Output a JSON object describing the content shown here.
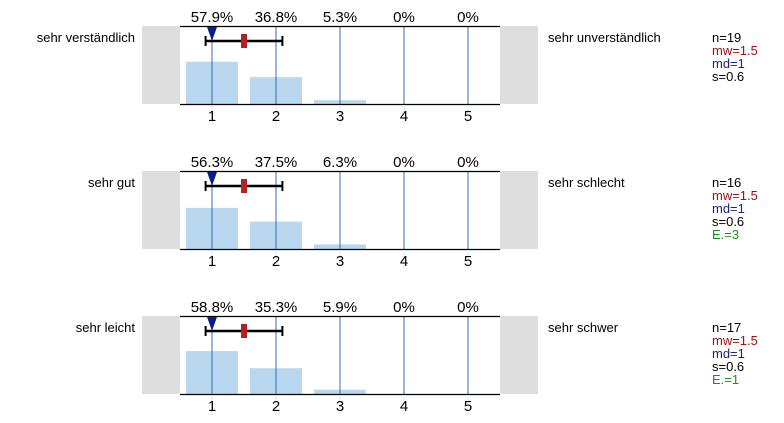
{
  "colors": {
    "bar": "#b9d7ee",
    "axis_line": "#2f6db5",
    "side_box": "#dedede",
    "mean_marker": "#b22222",
    "median_marker": "#0b1f8a",
    "mw_text": "#a01010",
    "md_text": "#1a237e",
    "s_text": "#000000",
    "e_text": "#1a8f1a",
    "n_text": "#000000"
  },
  "chart_data": [
    {
      "type": "bar",
      "left_label": "sehr verständlich",
      "right_label": "sehr unverständlich",
      "categories": [
        "1",
        "2",
        "3",
        "4",
        "5"
      ],
      "percent_labels": [
        "57.9%",
        "36.8%",
        "5.3%",
        "0%",
        "0%"
      ],
      "values": [
        57.9,
        36.8,
        5.3,
        0,
        0
      ],
      "mean": 1.5,
      "median": 1,
      "sd": 0.6,
      "stats": {
        "n": "n=19",
        "mw": "mw=1.5",
        "md": "md=1",
        "s": "s=0.6"
      }
    },
    {
      "type": "bar",
      "left_label": "sehr gut",
      "right_label": "sehr schlecht",
      "categories": [
        "1",
        "2",
        "3",
        "4",
        "5"
      ],
      "percent_labels": [
        "56.3%",
        "37.5%",
        "6.3%",
        "0%",
        "0%"
      ],
      "values": [
        56.3,
        37.5,
        6.3,
        0,
        0
      ],
      "mean": 1.5,
      "median": 1,
      "sd": 0.6,
      "stats": {
        "n": "n=16",
        "mw": "mw=1.5",
        "md": "md=1",
        "s": "s=0.6",
        "e": "E.=3"
      }
    },
    {
      "type": "bar",
      "left_label": "sehr leicht",
      "right_label": "sehr schwer",
      "categories": [
        "1",
        "2",
        "3",
        "4",
        "5"
      ],
      "percent_labels": [
        "58.8%",
        "35.3%",
        "5.9%",
        "0%",
        "0%"
      ],
      "values": [
        58.8,
        35.3,
        5.9,
        0,
        0
      ],
      "mean": 1.5,
      "median": 1,
      "sd": 0.6,
      "stats": {
        "n": "n=17",
        "mw": "mw=1.5",
        "md": "md=1",
        "s": "s=0.6",
        "e": "E.=1"
      }
    }
  ]
}
